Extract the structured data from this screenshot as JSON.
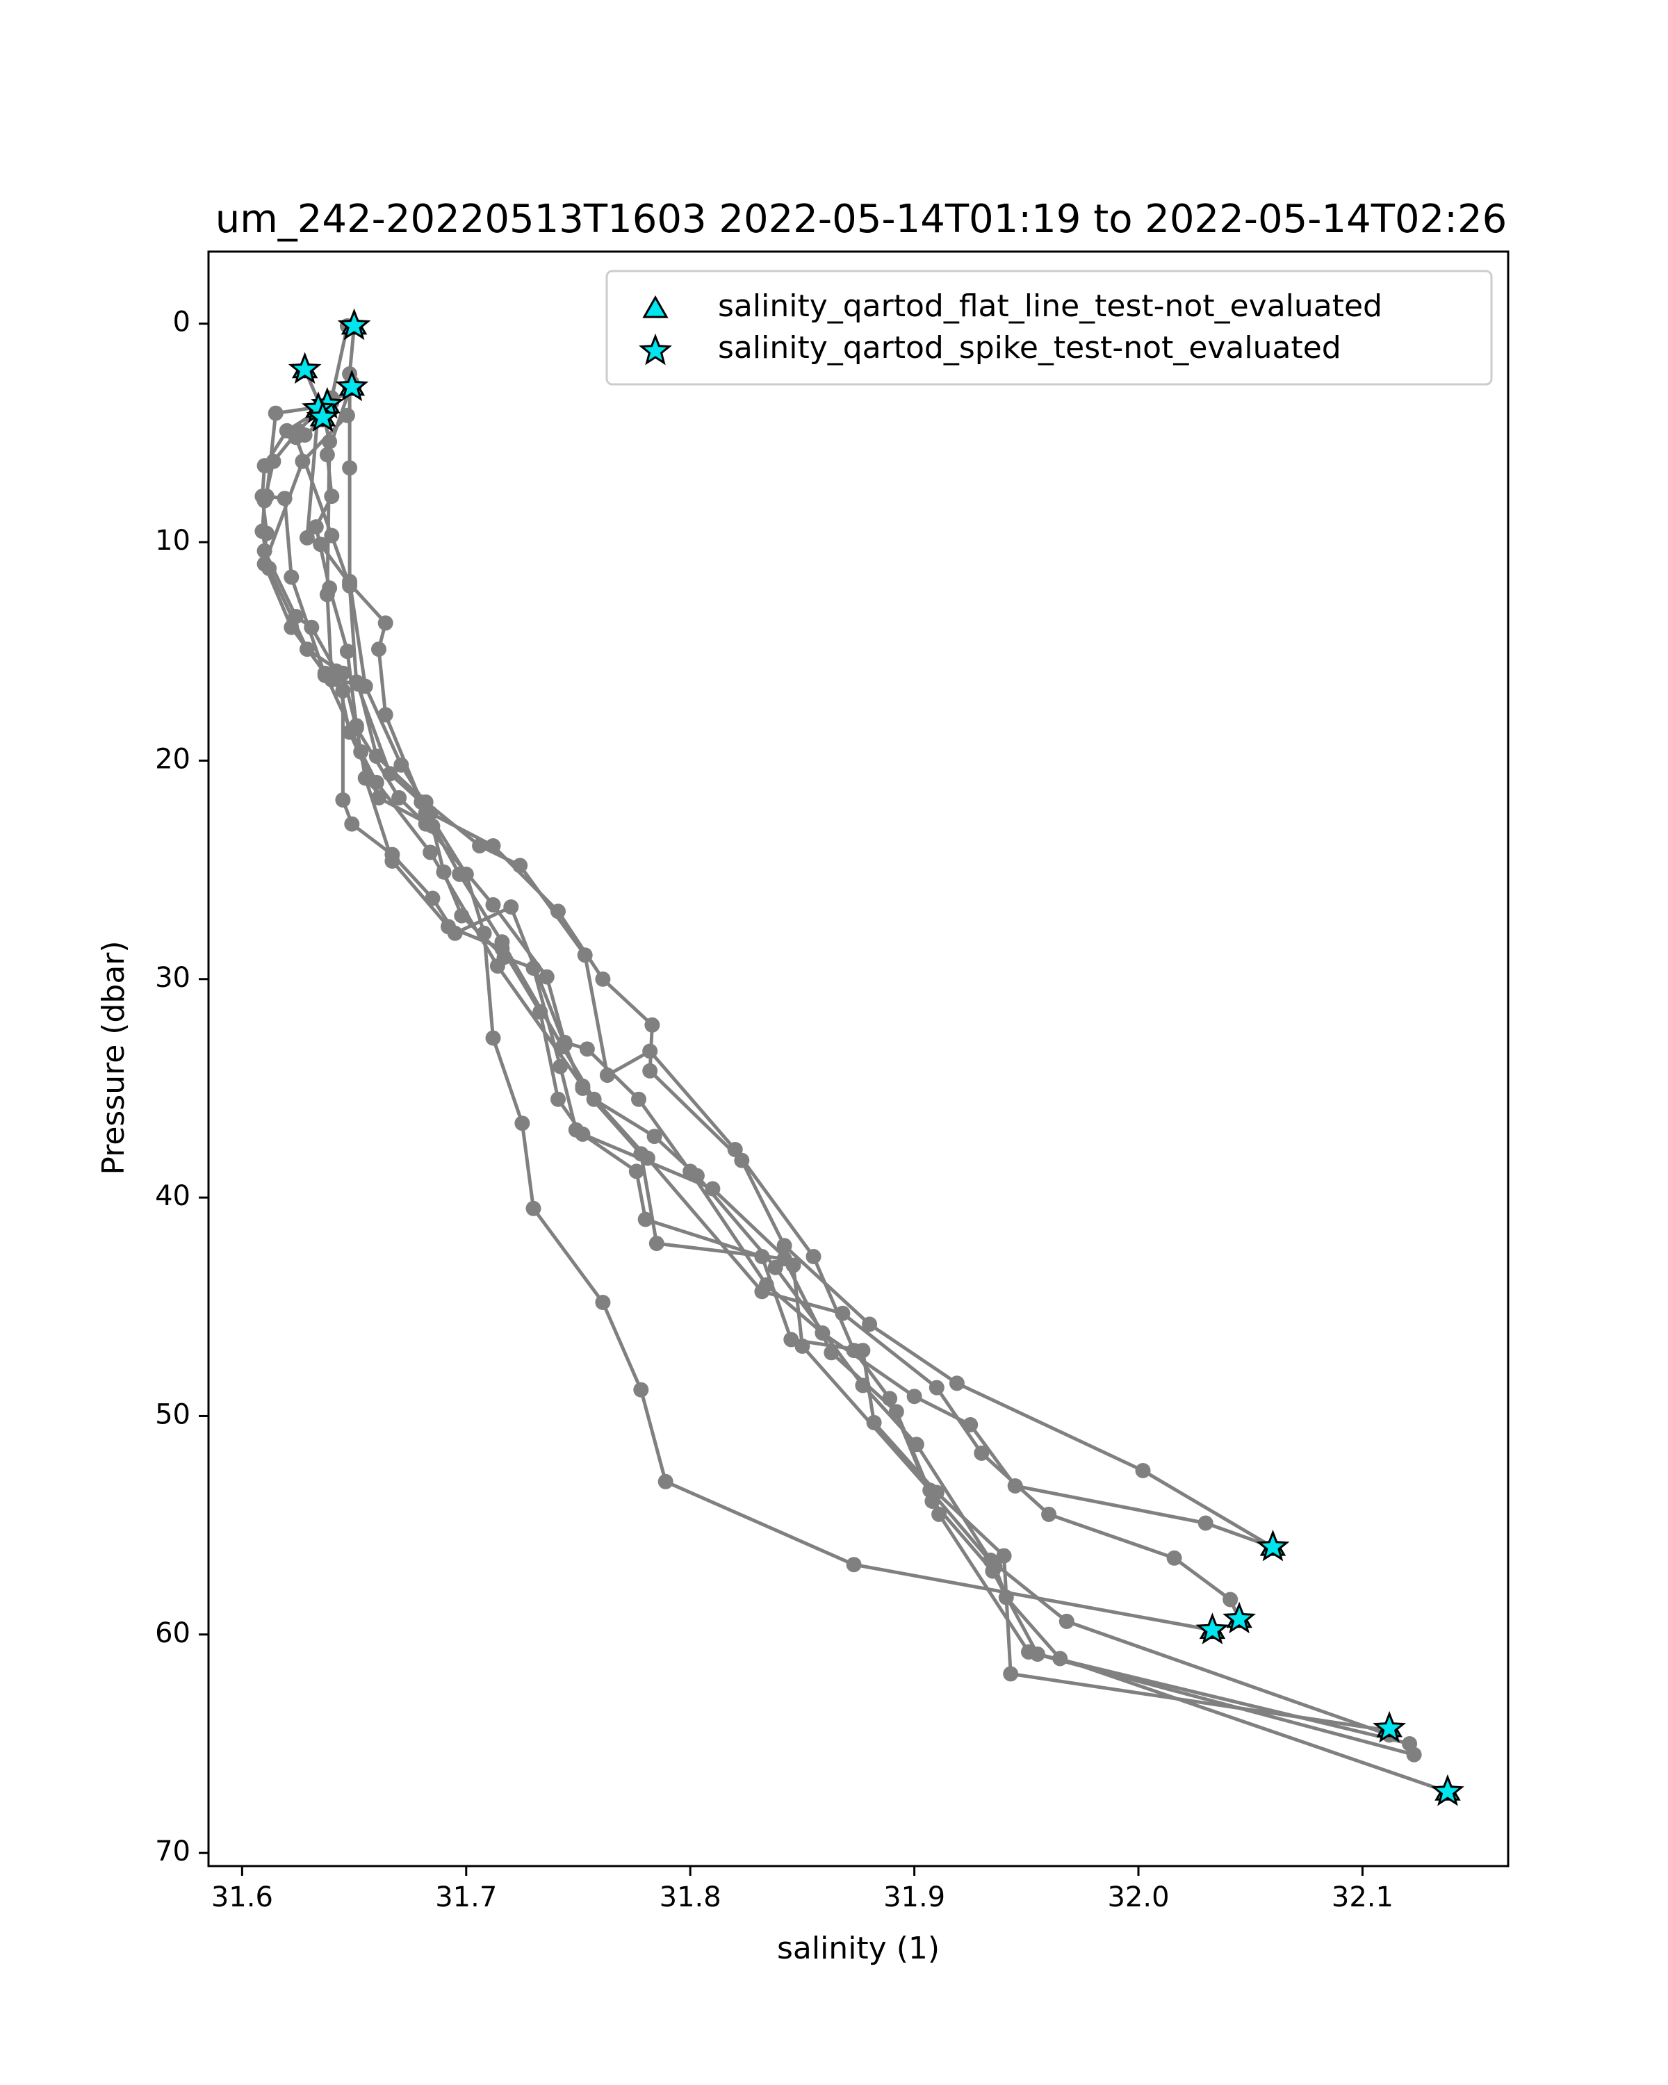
{
  "chart_data": {
    "type": "scatter",
    "title": "um_242-20220513T1603 2022-05-14T01:19 to 2022-05-14T02:26",
    "xlabel": "salinity (1)",
    "ylabel": "Pressure (dbar)",
    "xlim": [
      31.585,
      32.165
    ],
    "ylim": [
      70.6,
      -3.3
    ],
    "y_inverted": true,
    "xticks": [
      "31.6",
      "31.7",
      "31.8",
      "31.9",
      "32.0",
      "32.1"
    ],
    "yticks": [
      "0",
      "10",
      "20",
      "30",
      "40",
      "50",
      "60",
      "70"
    ],
    "grid": false,
    "legend_position": "top-right",
    "colors": {
      "profile": "#808080",
      "marker_fill": "#00e5ee",
      "marker_edge": "#000000"
    },
    "legend": [
      {
        "label": "salinity_qartod_flat_line_test-not_evaluated",
        "marker": "triangle"
      },
      {
        "label": "salinity_qartod_spike_test-not_evaluated",
        "marker": "star"
      }
    ],
    "series": [
      {
        "points": [
          [
            31.65,
            0.1
          ],
          [
            31.648,
            2.3
          ],
          [
            31.65,
            2.9
          ],
          [
            31.64,
            3.6
          ],
          [
            31.62,
            4.9
          ],
          [
            31.61,
            6.5
          ],
          [
            31.609,
            7.9
          ],
          [
            31.611,
            9.6
          ],
          [
            31.61,
            10.4
          ],
          [
            31.624,
            13.4
          ],
          [
            31.631,
            13.9
          ],
          [
            31.642,
            15.9
          ],
          [
            31.648,
            18.7
          ],
          [
            31.661,
            21.7
          ],
          [
            31.685,
            23.0
          ],
          [
            31.69,
            25.1
          ],
          [
            31.698,
            27.1
          ],
          [
            31.717,
            29.0
          ],
          [
            31.73,
            29.5
          ],
          [
            31.742,
            34.0
          ],
          [
            31.749,
            36.9
          ],
          [
            31.776,
            38.8
          ],
          [
            31.78,
            41.0
          ],
          [
            31.832,
            42.7
          ],
          [
            31.845,
            46.5
          ],
          [
            31.877,
            47.0
          ],
          [
            31.882,
            50.3
          ],
          [
            31.91,
            53.5
          ],
          [
            31.94,
            56.4
          ],
          [
            31.943,
            61.8
          ],
          [
            32.112,
            64.4
          ]
        ]
      },
      {
        "points": [
          [
            31.647,
            0.1
          ],
          [
            31.64,
            3.4
          ],
          [
            31.625,
            4.9
          ],
          [
            31.614,
            6.3
          ],
          [
            31.61,
            8.1
          ],
          [
            31.609,
            9.5
          ],
          [
            31.612,
            11.2
          ],
          [
            31.629,
            14.9
          ],
          [
            31.645,
            16.0
          ],
          [
            31.651,
            18.5
          ],
          [
            31.67,
            21.7
          ],
          [
            31.682,
            22.9
          ],
          [
            31.712,
            26.6
          ],
          [
            31.736,
            29.9
          ],
          [
            31.744,
            32.9
          ],
          [
            31.754,
            33.2
          ],
          [
            31.777,
            35.5
          ],
          [
            31.8,
            38.8
          ],
          [
            31.834,
            44.0
          ],
          [
            31.859,
            46.2
          ],
          [
            31.9,
            49.1
          ],
          [
            31.925,
            50.4
          ],
          [
            31.945,
            53.2
          ],
          [
            32.03,
            54.9
          ],
          [
            32.06,
            56.0
          ]
        ]
      },
      {
        "points": [
          [
            31.635,
            3.8
          ],
          [
            31.615,
            4.1
          ],
          [
            31.611,
            7.9
          ],
          [
            31.619,
            8.0
          ],
          [
            31.622,
            11.6
          ],
          [
            31.637,
            16.1
          ],
          [
            31.645,
            16.8
          ],
          [
            31.645,
            21.8
          ],
          [
            31.649,
            22.9
          ],
          [
            31.667,
            24.3
          ],
          [
            31.685,
            26.3
          ],
          [
            31.695,
            27.9
          ],
          [
            31.72,
            26.7
          ],
          [
            31.744,
            33.0
          ],
          [
            31.752,
            35.0
          ],
          [
            31.778,
            38.0
          ],
          [
            31.785,
            42.1
          ],
          [
            31.842,
            42.8
          ],
          [
            31.863,
            47.1
          ],
          [
            31.892,
            49.8
          ],
          [
            31.911,
            54.5
          ],
          [
            31.951,
            60.8
          ],
          [
            32.123,
            65.5
          ]
        ]
      },
      {
        "points": [
          [
            31.647,
            4.2
          ],
          [
            31.627,
            6.3
          ],
          [
            31.61,
            11.0
          ],
          [
            31.622,
            13.9
          ],
          [
            31.637,
            16.0
          ],
          [
            31.653,
            19.6
          ],
          [
            31.66,
            21.0
          ],
          [
            31.684,
            24.2
          ],
          [
            31.714,
            29.4
          ],
          [
            31.752,
            34.9
          ],
          [
            31.781,
            38.2
          ],
          [
            31.832,
            44.3
          ],
          [
            31.868,
            45.3
          ],
          [
            31.91,
            48.7
          ],
          [
            31.93,
            51.7
          ],
          [
            31.96,
            54.5
          ],
          [
            32.016,
            56.5
          ],
          [
            32.041,
            58.4
          ],
          [
            32.045,
            59.3
          ]
        ]
      },
      {
        "points": [
          [
            31.628,
            2.1
          ],
          [
            31.636,
            4.0
          ],
          [
            31.639,
            5.4
          ],
          [
            31.638,
            12.4
          ],
          [
            31.64,
            16.3
          ],
          [
            31.652,
            16.5
          ],
          [
            31.66,
            19.8
          ],
          [
            31.682,
            21.9
          ],
          [
            31.706,
            23.9
          ],
          [
            31.724,
            24.8
          ],
          [
            31.753,
            28.9
          ],
          [
            31.763,
            34.4
          ],
          [
            31.782,
            33.3
          ],
          [
            31.82,
            37.8
          ],
          [
            31.855,
            42.7
          ],
          [
            31.873,
            47.0
          ],
          [
            31.889,
            49.2
          ],
          [
            31.908,
            53.9
          ],
          [
            31.935,
            57.1
          ],
          [
            31.955,
            60.9
          ],
          [
            32.121,
            65.0
          ]
        ]
      },
      {
        "points": [
          [
            31.634,
            3.9
          ],
          [
            31.629,
            9.8
          ],
          [
            31.635,
            10.1
          ],
          [
            31.648,
            11.9
          ],
          [
            31.664,
            13.7
          ],
          [
            31.661,
            14.9
          ],
          [
            31.664,
            17.9
          ],
          [
            31.682,
            22.4
          ],
          [
            31.697,
            25.2
          ],
          [
            31.716,
            28.3
          ],
          [
            31.743,
            33.1
          ],
          [
            31.757,
            35.5
          ],
          [
            31.784,
            37.2
          ],
          [
            31.803,
            39.0
          ],
          [
            31.838,
            43.2
          ],
          [
            31.877,
            48.6
          ],
          [
            31.901,
            51.3
          ],
          [
            31.934,
            56.6
          ],
          [
            31.968,
            59.4
          ],
          [
            32.112,
            64.6
          ]
        ]
      },
      {
        "points": [
          [
            31.649,
            2.7
          ],
          [
            31.638,
            6.0
          ],
          [
            31.64,
            7.9
          ],
          [
            31.633,
            9.3
          ],
          [
            31.639,
            12.1
          ],
          [
            31.647,
            15.0
          ],
          [
            31.651,
            18.4
          ],
          [
            31.655,
            20.8
          ],
          [
            31.667,
            24.6
          ],
          [
            31.692,
            27.6
          ],
          [
            31.716,
            28.6
          ],
          [
            31.733,
            31.5
          ],
          [
            31.741,
            35.5
          ],
          [
            31.752,
            37.1
          ],
          [
            31.81,
            39.6
          ],
          [
            31.846,
            43.1
          ],
          [
            31.85,
            46.8
          ],
          [
            31.907,
            53.4
          ],
          [
            31.936,
            56.9
          ],
          [
            31.941,
            58.3
          ],
          [
            31.965,
            61.1
          ],
          [
            32.138,
            67.2
          ]
        ]
      },
      {
        "points": [
          [
            31.648,
            2.9
          ],
          [
            31.648,
            6.6
          ],
          [
            31.648,
            11.8
          ],
          [
            31.655,
            16.6
          ],
          [
            31.671,
            20.2
          ],
          [
            31.684,
            22.4
          ],
          [
            31.712,
            23.9
          ],
          [
            31.741,
            26.9
          ],
          [
            31.761,
            30.0
          ],
          [
            31.783,
            32.1
          ],
          [
            31.782,
            34.2
          ],
          [
            31.823,
            38.3
          ],
          [
            31.842,
            42.2
          ],
          [
            31.88,
            45.8
          ],
          [
            31.919,
            48.5
          ],
          [
            32.002,
            52.5
          ],
          [
            32.06,
            56.0
          ]
        ]
      },
      {
        "points": [
          [
            31.636,
            4.4
          ],
          [
            31.628,
            5.1
          ],
          [
            31.624,
            5.2
          ],
          [
            31.64,
            9.7
          ],
          [
            31.648,
            12.0
          ],
          [
            31.651,
            16.4
          ],
          [
            31.666,
            20.6
          ],
          [
            31.68,
            21.9
          ],
          [
            31.7,
            25.2
          ],
          [
            31.708,
            27.9
          ],
          [
            31.712,
            32.7
          ],
          [
            31.725,
            36.6
          ],
          [
            31.73,
            40.5
          ],
          [
            31.761,
            44.8
          ],
          [
            31.778,
            48.8
          ],
          [
            31.789,
            53.0
          ],
          [
            31.873,
            56.8
          ],
          [
            32.033,
            59.8
          ]
        ]
      }
    ],
    "spike_markers": [
      [
        31.65,
        0.1
      ],
      [
        31.628,
        2.1
      ],
      [
        31.649,
        2.9
      ],
      [
        31.638,
        3.7
      ],
      [
        31.634,
        3.9
      ],
      [
        31.636,
        4.3
      ],
      [
        32.06,
        56.0
      ],
      [
        32.045,
        59.3
      ],
      [
        32.033,
        59.8
      ],
      [
        32.112,
        64.3
      ],
      [
        32.138,
        67.2
      ]
    ],
    "flat_line_markers": [
      [
        31.65,
        0.1
      ],
      [
        31.628,
        2.1
      ],
      [
        31.649,
        2.9
      ],
      [
        31.638,
        3.7
      ],
      [
        31.634,
        3.9
      ],
      [
        31.636,
        4.3
      ],
      [
        32.06,
        56.0
      ],
      [
        32.045,
        59.3
      ],
      [
        32.033,
        59.8
      ],
      [
        32.112,
        64.3
      ],
      [
        32.138,
        67.2
      ]
    ]
  }
}
